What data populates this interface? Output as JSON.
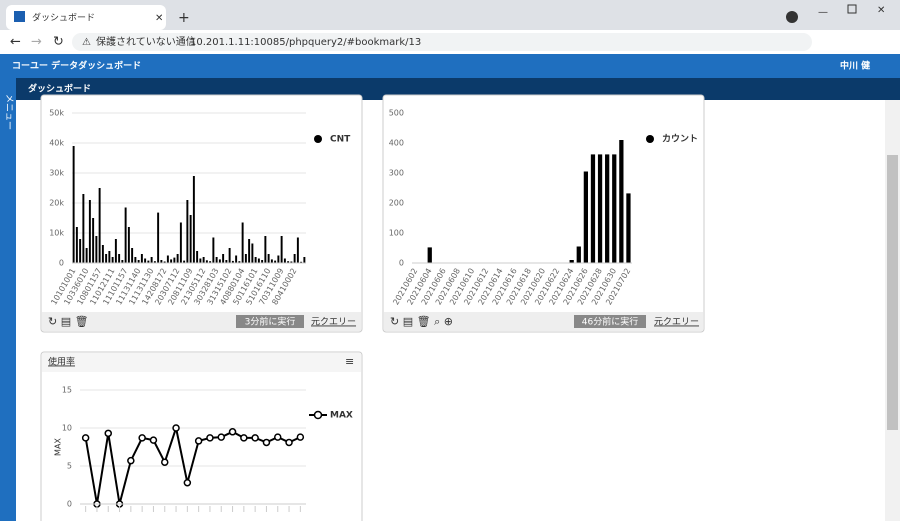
{
  "browser": {
    "tab_title": "ダッシュボード",
    "security_label": "保護されていない通信",
    "url": "10.201.1.11:10085/phpquery2/#bookmark/13"
  },
  "app": {
    "title": "コーユー データダッシュボード",
    "user": "中川 健",
    "section": "ダッシュボード",
    "menu": "メニュー"
  },
  "widgets": [
    {
      "status": "3分前に実行",
      "link": "元クエリー"
    },
    {
      "status": "46分前に実行",
      "link": "元クエリー"
    }
  ],
  "chart_data": [
    {
      "type": "bar",
      "grid": true,
      "categories": [
        "10101001",
        null,
        null,
        null,
        "10336010",
        null,
        null,
        null,
        "10801157",
        null,
        null,
        null,
        "11012111",
        null,
        null,
        null,
        "11101157",
        null,
        null,
        null,
        "11131140",
        null,
        null,
        null,
        "11131130",
        null,
        null,
        null,
        "14208172",
        null,
        null,
        null,
        "20307112",
        null,
        null,
        null,
        "20811109",
        null,
        null,
        null,
        "21305112",
        null,
        null,
        null,
        "30328103",
        null,
        null,
        null,
        "31315102",
        null,
        null,
        null,
        "40880104",
        null,
        null,
        null,
        "50116101",
        null,
        null,
        null,
        "51016110",
        null,
        null,
        null,
        "70311009",
        null,
        null,
        null,
        "80410002",
        null,
        null,
        null
      ],
      "series": [
        {
          "name": "CNT",
          "color": "#000000",
          "values": [
            39000,
            12000,
            8000,
            23000,
            5000,
            21000,
            15000,
            9000,
            25000,
            6000,
            3000,
            4000,
            2000,
            8000,
            3000,
            1000,
            18500,
            12000,
            5000,
            2000,
            1000,
            3000,
            1500,
            800,
            2000,
            600,
            16800,
            1000,
            500,
            2500,
            1200,
            1800,
            3000,
            13500,
            800,
            21000,
            16000,
            29000,
            4000,
            1500,
            2000,
            900,
            600,
            8500,
            2000,
            1200,
            3000,
            1000,
            5000,
            700,
            2500,
            600,
            13500,
            3000,
            8000,
            6500,
            2000,
            1500,
            1000,
            9000,
            3000,
            1200,
            800,
            2500,
            9000,
            1500,
            600,
            500,
            3000,
            8500,
            400,
            2000
          ]
        }
      ],
      "ylim": [
        0,
        50000
      ],
      "yticks": [
        0,
        {
          "value": 10000,
          "label": "10k"
        },
        {
          "value": 20000,
          "label": "20k"
        },
        {
          "value": 30000,
          "label": "30k"
        },
        {
          "value": 40000,
          "label": "40k"
        },
        {
          "value": 50000,
          "label": "50k"
        }
      ]
    },
    {
      "type": "bar",
      "grid": false,
      "categories": [
        "20210602",
        null,
        "20210604",
        null,
        "20210606",
        null,
        "20210608",
        null,
        "20210610",
        null,
        "20210612",
        null,
        "20210614",
        null,
        "20210616",
        null,
        "20210618",
        null,
        "20210620",
        null,
        "20210622",
        null,
        "20210624",
        null,
        "20210626",
        null,
        "20210628",
        null,
        "20210630",
        null,
        "20210702"
      ],
      "series": [
        {
          "name": "カウント",
          "color": "#000000",
          "values": [
            0,
            0,
            52,
            0,
            0,
            0,
            0,
            0,
            0,
            0,
            0,
            0,
            0,
            0,
            0,
            0,
            0,
            0,
            0,
            0,
            0,
            0,
            10,
            55,
            305,
            362,
            362,
            362,
            362,
            410,
            232
          ]
        }
      ],
      "ylim": [
        0,
        500
      ],
      "yticks": [
        0,
        100,
        200,
        300,
        400,
        500
      ]
    },
    {
      "type": "line",
      "grid": true,
      "title": "使用率",
      "y_label": "MAX",
      "categories": [
        null,
        null,
        null,
        null,
        null,
        null,
        null,
        null,
        null,
        null,
        null,
        null,
        null,
        null,
        null,
        null,
        null,
        null,
        null,
        null
      ],
      "series": [
        {
          "name": "MAX",
          "color": "#000000",
          "values": [
            8.7,
            0,
            9.3,
            0,
            5.7,
            8.7,
            8.4,
            5.5,
            10,
            2.8,
            8.3,
            8.7,
            8.8,
            9.5,
            8.7,
            8.7,
            8.1,
            8.8,
            8.1,
            8.8
          ]
        }
      ],
      "ylim": [
        0,
        15
      ],
      "yticks": [
        0,
        5,
        10,
        15
      ]
    }
  ]
}
